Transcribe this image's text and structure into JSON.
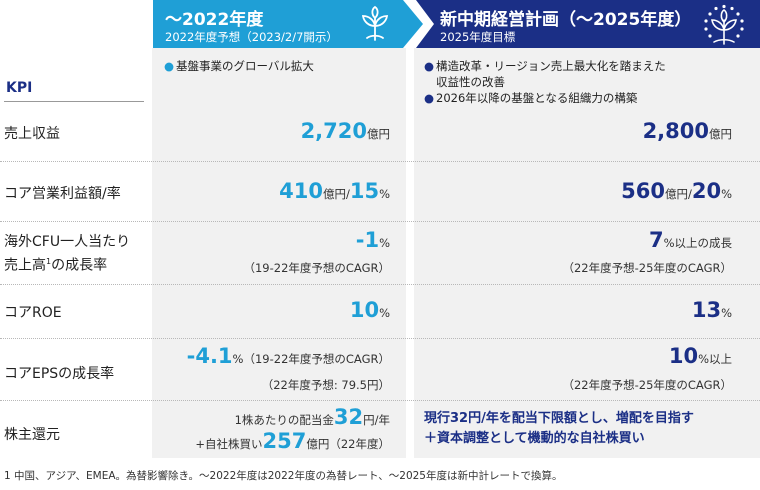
{
  "header": {
    "col1": {
      "title": "～2022年度",
      "subtitle": "2022年度予想（2023/2/7開示）"
    },
    "col2": {
      "title": "新中期経営計画（～2025年度）",
      "subtitle": "2025年度目標"
    }
  },
  "kpi_heading": "KPI",
  "bullets": {
    "col1": [
      "基盤事業のグローバル拡大"
    ],
    "col2": [
      "構造改革・リージョン売上最大化を踏まえた",
      "収益性の改善",
      "2026年以降の基盤となる組織力の構築"
    ]
  },
  "rows": {
    "revenue": {
      "label": "売上収益",
      "col1": {
        "value": "2,720",
        "unit": "億円"
      },
      "col2": {
        "value": "2,800",
        "unit": "億円"
      }
    },
    "core_op": {
      "label": "コア営業利益額/率",
      "col1": {
        "value": "410",
        "unit": "億円/",
        "value2": "15",
        "unit2": "%"
      },
      "col2": {
        "value": "560",
        "unit": "億円/",
        "value2": "20",
        "unit2": "%"
      }
    },
    "overseas": {
      "label_line1": "海外CFU一人当たり",
      "label_line2": "売上高",
      "label_sup": "1",
      "label_line2b": "の成長率",
      "col1": {
        "value": "-1",
        "unit": "%",
        "note": "（19-22年度予想のCAGR）"
      },
      "col2": {
        "value": "7",
        "unit": "%以上の成長",
        "note": "（22年度予想-25年度のCAGR）"
      }
    },
    "core_roe": {
      "label": "コアROE",
      "col1": {
        "value": "10",
        "unit": "%"
      },
      "col2": {
        "value": "13",
        "unit": "%"
      }
    },
    "eps": {
      "label": "コアEPSの成長率",
      "col1": {
        "value": "-4.1",
        "unit": "%",
        "note_inline": "（19-22年度予想のCAGR）",
        "note": "（22年度予想: 79.5円）"
      },
      "col2": {
        "value": "10",
        "unit": "%以上",
        "note": "（22年度予想-25年度のCAGR）"
      }
    },
    "shareholder": {
      "label": "株主還元",
      "col1": {
        "line1_prefix": "1株あたりの配当金",
        "line1_value": "32",
        "line1_unit": "円/年",
        "line2_prefix": "+自社株買い",
        "line2_value": "257",
        "line2_unit": "億円（22年度）"
      },
      "col2": {
        "line1": "現行32円/年を配当下限額とし、増配を目指す",
        "line2": "＋資本調整として機動的な自社株買い"
      }
    }
  },
  "footnote": "1 中国、アジア、EMEA。為替影響除き。～2022年度は2022年度の為替レート、～2025年度は新中計レートで換算。",
  "colors": {
    "light_blue": "#1f9fd6",
    "navy": "#1b2f86",
    "panel_gray": "#f1f1f1"
  },
  "icons": {
    "col1": "sprout-leaf-icon",
    "col2": "tree-emblem-icon"
  }
}
